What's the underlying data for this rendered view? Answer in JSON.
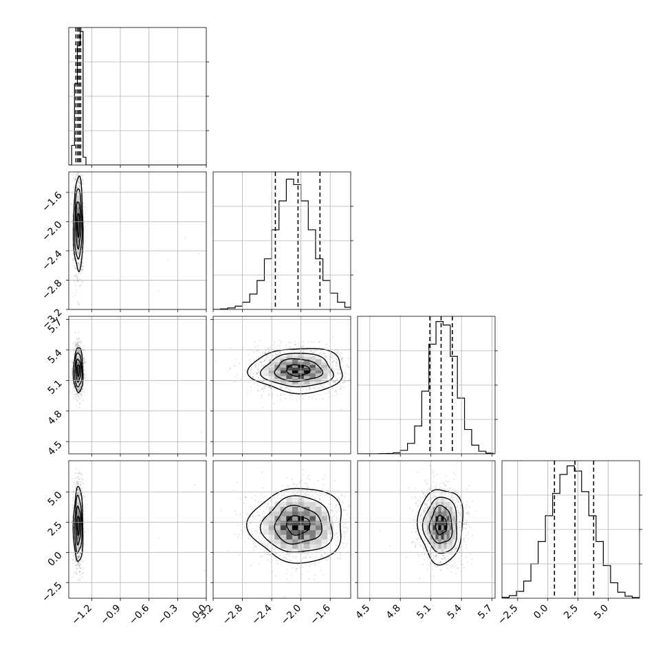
{
  "chart_data": {
    "type": "corner",
    "title": "",
    "parameters": [
      {
        "index": 0,
        "range": [
          -1.44,
          0.0
        ],
        "ticks": [
          -1.2,
          -0.9,
          -0.6,
          -0.3,
          0.0
        ],
        "tick_labels": [
          "−1.2",
          "−0.9",
          "−0.6",
          "−0.3",
          "0.0"
        ]
      },
      {
        "index": 1,
        "range": [
          -3.2,
          -1.32
        ],
        "ticks": [
          -3.2,
          -2.8,
          -2.4,
          -2.0,
          -1.6
        ],
        "tick_labels": [
          "−3.2",
          "−2.8",
          "−2.4",
          "−2.0",
          "−1.6"
        ]
      },
      {
        "index": 2,
        "range": [
          4.38,
          5.73
        ],
        "ticks": [
          4.5,
          4.8,
          5.1,
          5.4,
          5.7
        ],
        "tick_labels": [
          "4.5",
          "4.8",
          "5.1",
          "5.4",
          "5.7"
        ]
      },
      {
        "index": 3,
        "range": [
          -3.8,
          7.6
        ],
        "ticks": [
          -2.5,
          0.0,
          2.5,
          5.0
        ],
        "tick_labels": [
          "−2.5",
          "0.0",
          "2.5",
          "5.0"
        ]
      }
    ],
    "marginals": [
      {
        "param": 0,
        "bin_edges": [
          -1.44,
          -1.41,
          -1.38,
          -1.35,
          -1.32,
          -1.29,
          -1.26,
          -1.23
        ],
        "counts": [
          0,
          150,
          620,
          910,
          1020,
          60,
          0
        ],
        "quantiles": [
          -1.365,
          -1.345,
          -1.33,
          -1.315
        ],
        "ylim": [
          0,
          1050
        ]
      },
      {
        "param": 1,
        "bin_edges": [
          -3.2,
          -3.1,
          -3.0,
          -2.9,
          -2.8,
          -2.7,
          -2.6,
          -2.5,
          -2.4,
          -2.3,
          -2.2,
          -2.1,
          -2.0,
          -1.9,
          -1.8,
          -1.7,
          -1.6,
          -1.5,
          -1.4,
          -1.3
        ],
        "counts": [
          0,
          3,
          8,
          18,
          40,
          85,
          160,
          280,
          440,
          600,
          720,
          690,
          600,
          440,
          280,
          160,
          90,
          40,
          12
        ],
        "quantiles": [
          -2.35,
          -2.04,
          -1.74
        ],
        "ylim": [
          0,
          760
        ]
      },
      {
        "param": 2,
        "bin_edges": [
          4.38,
          4.45,
          4.52,
          4.59,
          4.66,
          4.73,
          4.8,
          4.87,
          4.94,
          5.01,
          5.08,
          5.15,
          5.22,
          5.29,
          5.36,
          5.43,
          5.5,
          5.57,
          5.64,
          5.71
        ],
        "counts": [
          0,
          0,
          0,
          1,
          2,
          6,
          20,
          60,
          160,
          360,
          630,
          760,
          740,
          560,
          320,
          140,
          50,
          15,
          4
        ],
        "quantiles": [
          5.09,
          5.2,
          5.31
        ],
        "ylim": [
          0,
          790
        ]
      },
      {
        "param": 3,
        "bin_edges": [
          -3.8,
          -3.2,
          -2.6,
          -2.0,
          -1.4,
          -0.8,
          -0.2,
          0.4,
          1.0,
          1.6,
          2.2,
          2.8,
          3.4,
          4.0,
          4.6,
          5.2,
          5.8,
          6.4,
          7.0,
          7.6
        ],
        "counts": [
          5,
          15,
          40,
          100,
          200,
          330,
          480,
          610,
          720,
          770,
          740,
          620,
          480,
          330,
          190,
          90,
          35,
          12,
          4
        ],
        "quantiles": [
          0.55,
          2.25,
          3.8
        ],
        "ylim": [
          0,
          800
        ]
      }
    ],
    "pairs": [
      {
        "x": 0,
        "y": 1,
        "center": [
          -1.34,
          -2.04
        ],
        "sigma": [
          0.025,
          0.32
        ],
        "rho": 0.0,
        "outliers": [
          [
            -0.22,
            -2.22
          ],
          [
            -0.08,
            -2.44
          ],
          [
            -0.4,
            -2.52
          ],
          [
            -0.5,
            -2.95
          ]
        ]
      },
      {
        "x": 0,
        "y": 2,
        "center": [
          -1.34,
          5.2
        ],
        "sigma": [
          0.025,
          0.11
        ],
        "rho": 0.0,
        "outliers": [
          [
            -0.6,
            4.84
          ],
          [
            -0.3,
            4.59
          ],
          [
            -0.05,
            4.59
          ]
        ]
      },
      {
        "x": 1,
        "y": 2,
        "center": [
          -2.04,
          5.2
        ],
        "sigma": [
          0.32,
          0.11
        ],
        "rho": 0.0,
        "outliers": []
      },
      {
        "x": 0,
        "y": 3,
        "center": [
          -1.34,
          2.25
        ],
        "sigma": [
          0.025,
          1.55
        ],
        "rho": 0.0,
        "outliers": [
          [
            -0.12,
            5.6
          ],
          [
            -0.3,
            3.0
          ],
          [
            -0.5,
            1.2
          ],
          [
            -0.02,
            -1.5
          ]
        ]
      },
      {
        "x": 1,
        "y": 3,
        "center": [
          -2.04,
          2.25
        ],
        "sigma": [
          0.32,
          1.55
        ],
        "rho": 0.0,
        "outliers": []
      },
      {
        "x": 2,
        "y": 3,
        "center": [
          5.2,
          2.25
        ],
        "sigma": [
          0.11,
          1.55
        ],
        "rho": 0.0,
        "outliers": [
          [
            4.6,
            1.8
          ],
          [
            4.7,
            0.5
          ]
        ]
      }
    ],
    "contour_levels_sigma": [
      0.5,
      1.0,
      1.5,
      2.0
    ],
    "grid": true,
    "legend": "none",
    "colors": {
      "ink": "#000000",
      "grid": "#b0b0b0",
      "background": "#ffffff"
    }
  }
}
